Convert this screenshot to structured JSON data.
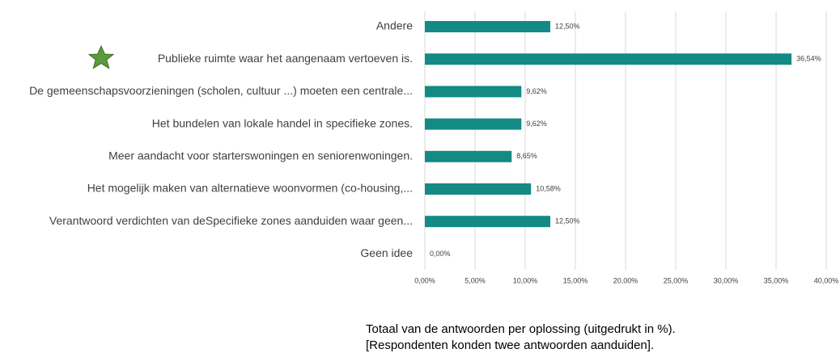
{
  "chart_data": {
    "type": "bar",
    "orientation": "horizontal",
    "categories": [
      "Andere",
      "Publieke ruimte waar het aangenaam vertoeven is.",
      "De gemeenschapsvoorzieningen (scholen, cultuur ...) moeten een centrale...",
      "Het bundelen van lokale handel in specifieke zones.",
      "Meer aandacht voor starterswoningen en seniorenwoningen.",
      "Het mogelijk maken van alternatieve woonvormen (co-housing,...",
      "Verantwoord verdichten van deSpecifieke zones aanduiden waar geen...",
      "Geen idee"
    ],
    "values": [
      12.5,
      36.54,
      9.62,
      9.62,
      8.65,
      10.58,
      12.5,
      0
    ],
    "value_labels": [
      "12,50%",
      "36,54%",
      "9,62%",
      "9,62%",
      "8,65%",
      "10,58%",
      "12,50%",
      "0,00%"
    ],
    "color": "#138a84",
    "xlim": [
      0,
      40
    ],
    "xticks": [
      {
        "value": 0,
        "label": "0,00%"
      },
      {
        "value": 5,
        "label": "5,00%"
      },
      {
        "value": 10,
        "label": "10,00%"
      },
      {
        "value": 15,
        "label": "15,00%"
      },
      {
        "value": 20,
        "label": "20,00%"
      },
      {
        "value": 25,
        "label": "25,00%"
      },
      {
        "value": 30,
        "label": "30,00%"
      },
      {
        "value": 35,
        "label": "35,00%"
      },
      {
        "value": 40,
        "label": "40,00%"
      }
    ],
    "grid": true,
    "caption": [
      "Totaal van de antwoorden per oplossing  (uitgedrukt in %).",
      "[Respondenten konden twee antwoorden aanduiden]."
    ]
  }
}
